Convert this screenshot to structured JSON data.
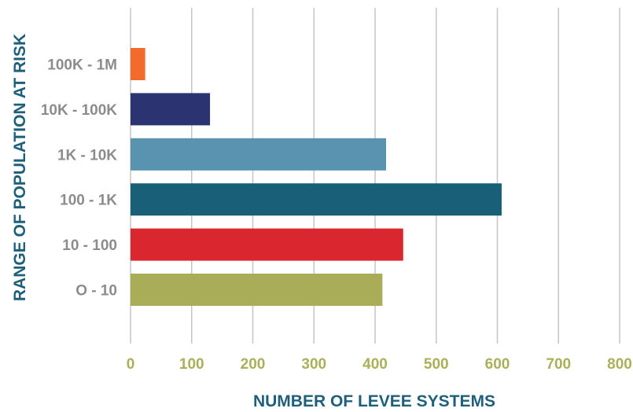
{
  "chart_data": {
    "type": "bar",
    "orientation": "horizontal",
    "categories": [
      "100K - 1M",
      "10K - 100K",
      "1K - 10K",
      "100 - 1K",
      "10 - 100",
      "O - 10"
    ],
    "values": [
      24,
      130,
      418,
      607,
      446,
      412
    ],
    "colors": [
      "#f26b2a",
      "#2b3470",
      "#5a93b0",
      "#1a5f78",
      "#d9262f",
      "#a9ad57"
    ],
    "xlabel": "NUMBER OF LEVEE SYSTEMS",
    "ylabel": "RANGE OF POPULATION AT RISK",
    "xlim": [
      0,
      800
    ],
    "xticks": [
      "0",
      "100",
      "200",
      "300",
      "400",
      "500",
      "600",
      "700",
      "800"
    ],
    "grid": true,
    "legend": "none"
  }
}
